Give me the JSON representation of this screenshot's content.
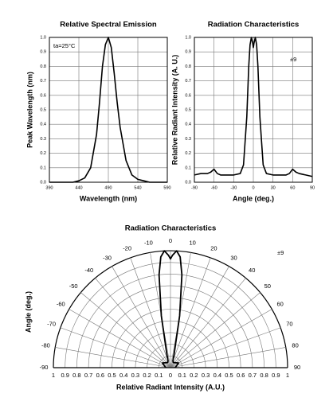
{
  "chart_data": [
    {
      "type": "line",
      "title": "Relative Spectral Emission",
      "xlabel": "Wavelength (nm)",
      "ylabel": "Peak Wavelength (nm)",
      "annotation": "ta=25°C",
      "x": [
        390,
        400,
        410,
        420,
        430,
        440,
        450,
        460,
        470,
        475,
        480,
        485,
        490,
        495,
        500,
        505,
        510,
        520,
        530,
        540,
        550,
        560,
        570,
        580,
        590
      ],
      "values": [
        0,
        0,
        0,
        0,
        0,
        0.01,
        0.03,
        0.1,
        0.33,
        0.55,
        0.8,
        0.95,
        1.0,
        0.93,
        0.75,
        0.55,
        0.38,
        0.15,
        0.05,
        0.02,
        0.01,
        0,
        0,
        0,
        0
      ],
      "color": "#000000",
      "xlim": [
        390,
        590
      ],
      "xticks": [
        390,
        440,
        490,
        540,
        590
      ],
      "ylim": [
        0,
        1
      ],
      "yticks": [
        {
          "value": 0,
          "label": "0.0"
        },
        0.1,
        0.2,
        0.3,
        0.4,
        0.5,
        0.6,
        0.7,
        0.8,
        0.9,
        {
          "value": 1,
          "label": "1.0"
        }
      ],
      "grid": true
    },
    {
      "type": "line",
      "title": "Radiation Characteristics",
      "xlabel": "Angle (deg.)",
      "ylabel": "Relative Radiant Intensity (A. U.)",
      "annotation": "±9",
      "x": [
        -90,
        -80,
        -70,
        -65,
        -60,
        -55,
        -50,
        -40,
        -30,
        -20,
        -15,
        -10,
        -7,
        -5,
        -3,
        -1,
        0,
        1,
        3,
        5,
        7,
        10,
        15,
        20,
        30,
        40,
        50,
        55,
        60,
        65,
        70,
        80,
        90
      ],
      "values": [
        0.05,
        0.06,
        0.06,
        0.07,
        0.09,
        0.06,
        0.05,
        0.05,
        0.05,
        0.06,
        0.12,
        0.45,
        0.8,
        0.95,
        1.0,
        0.96,
        0.93,
        0.96,
        1.0,
        0.95,
        0.8,
        0.45,
        0.12,
        0.06,
        0.05,
        0.05,
        0.05,
        0.06,
        0.09,
        0.07,
        0.06,
        0.05,
        0.04
      ],
      "color": "#000000",
      "xlim": [
        -90,
        90
      ],
      "xticks": [
        -90,
        -60,
        -30,
        0,
        30,
        60,
        90
      ],
      "ylim": [
        0,
        1
      ],
      "yticks": [
        {
          "value": 0,
          "label": "0.0"
        },
        0.1,
        0.2,
        0.3,
        0.4,
        0.5,
        0.6,
        0.7,
        0.8,
        0.9,
        {
          "value": 1,
          "label": "1.0"
        }
      ],
      "grid": true
    },
    {
      "type": "polar",
      "title": "Radiation Characteristics",
      "xlabel": "Relative Radiant Intensity (A.U.)",
      "ylabel": "Angle (deg.)",
      "annotation": "±9",
      "x": [
        -90,
        -60,
        -30,
        -20,
        -15,
        -10,
        -7,
        -5,
        -3,
        -1,
        0,
        1,
        3,
        5,
        7,
        10,
        15,
        20,
        30,
        60,
        90
      ],
      "values": [
        0.04,
        0.08,
        0.05,
        0.06,
        0.12,
        0.45,
        0.8,
        0.95,
        1.0,
        0.96,
        0.93,
        0.96,
        1.0,
        0.95,
        0.8,
        0.45,
        0.12,
        0.06,
        0.05,
        0.08,
        0.04
      ],
      "color": "#000000",
      "thetalim": [
        -90,
        90
      ],
      "thetaticks": [
        -90,
        -80,
        -70,
        -60,
        -50,
        -40,
        -30,
        -20,
        -10,
        0,
        10,
        20,
        30,
        40,
        50,
        60,
        70,
        80,
        90
      ],
      "rlim": [
        0,
        1
      ],
      "rticks": [
        0,
        0.1,
        0.2,
        0.3,
        0.4,
        0.5,
        0.6,
        0.7,
        0.8,
        0.9,
        1
      ],
      "grid": true
    }
  ]
}
